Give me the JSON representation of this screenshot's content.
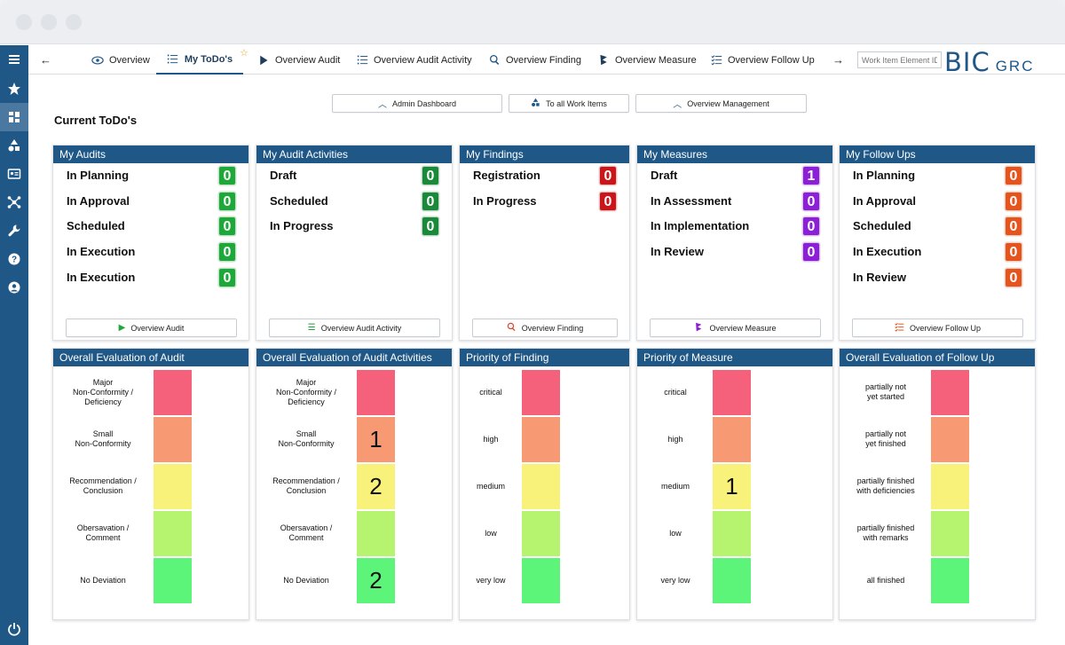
{
  "nav": {
    "tabs": [
      {
        "label": "Overview",
        "icon": "eye-icon"
      },
      {
        "label": "My ToDo's",
        "icon": "list-icon",
        "active": true
      },
      {
        "label": "Overview Audit",
        "icon": "play-icon"
      },
      {
        "label": "Overview Audit Activity",
        "icon": "list-icon"
      },
      {
        "label": "Overview Finding",
        "icon": "search-icon"
      },
      {
        "label": "Overview Measure",
        "icon": "measure-icon"
      },
      {
        "label": "Overview Follow Up",
        "icon": "checklist-icon"
      }
    ],
    "search_placeholder": "Work Item Element ID",
    "logo_main": "BIC",
    "logo_sub": "GRC"
  },
  "top_buttons": [
    "Admin Dashboard",
    "To all Work Items",
    "Overview Management"
  ],
  "page_title": "Current ToDo's",
  "colors": {
    "brand": "#1f5787",
    "green": "#1fa83a",
    "red": "#c8161a",
    "purple": "#8c20d6",
    "orange": "#e5541d",
    "eval": [
      "#f5607a",
      "#f79a74",
      "#f9f27a",
      "#b6f36e",
      "#5cf57a"
    ]
  },
  "todo_cards": [
    {
      "title": "My Audits",
      "rows": [
        {
          "label": "In Planning",
          "count": "0"
        },
        {
          "label": "In Approval",
          "count": "0"
        },
        {
          "label": "Scheduled",
          "count": "0"
        },
        {
          "label": "In Execution",
          "count": "0"
        },
        {
          "label": "In Execution",
          "count": "0"
        }
      ],
      "button": "Overview Audit"
    },
    {
      "title": "My Audit Activities",
      "rows": [
        {
          "label": "Draft",
          "count": "0"
        },
        {
          "label": "Scheduled",
          "count": "0"
        },
        {
          "label": "In Progress",
          "count": "0"
        }
      ],
      "button": "Overview Audit Activity"
    },
    {
      "title": "My Findings",
      "rows": [
        {
          "label": "Registration",
          "count": "0"
        },
        {
          "label": "In Progress",
          "count": "0"
        }
      ],
      "button": "Overview Finding"
    },
    {
      "title": "My Measures",
      "rows": [
        {
          "label": "Draft",
          "count": "1"
        },
        {
          "label": "In Assessment",
          "count": "0"
        },
        {
          "label": "In Implementation",
          "count": "0"
        },
        {
          "label": "In Review",
          "count": "0"
        }
      ],
      "button": "Overview Measure"
    },
    {
      "title": "My Follow Ups",
      "rows": [
        {
          "label": "In Planning",
          "count": "0"
        },
        {
          "label": "In Approval",
          "count": "0"
        },
        {
          "label": "Scheduled",
          "count": "0"
        },
        {
          "label": "In Execution",
          "count": "0"
        },
        {
          "label": "In Review",
          "count": "0"
        }
      ],
      "button": "Overview Follow Up"
    }
  ],
  "eval_cards": [
    {
      "title": "Overall Evaluation of Audit",
      "levels": [
        {
          "label": "Major\nNon-Conformity /\nDeficiency",
          "value": ""
        },
        {
          "label": "Small\nNon-Conformity",
          "value": ""
        },
        {
          "label": "Recommendation /\nConclusion",
          "value": ""
        },
        {
          "label": "Obersavation /\nComment",
          "value": ""
        },
        {
          "label": "No Deviation",
          "value": ""
        }
      ]
    },
    {
      "title": "Overall Evaluation of Audit Activities",
      "levels": [
        {
          "label": "Major\nNon-Conformity /\nDeficiency",
          "value": ""
        },
        {
          "label": "Small\nNon-Conformity",
          "value": "1"
        },
        {
          "label": "Recommendation /\nConclusion",
          "value": "2"
        },
        {
          "label": "Obersavation /\nComment",
          "value": ""
        },
        {
          "label": "No Deviation",
          "value": "2"
        }
      ]
    },
    {
      "title": "Priority of Finding",
      "levels": [
        {
          "label": "critical",
          "value": ""
        },
        {
          "label": "high",
          "value": ""
        },
        {
          "label": "medium",
          "value": ""
        },
        {
          "label": "low",
          "value": ""
        },
        {
          "label": "very low",
          "value": ""
        }
      ]
    },
    {
      "title": "Priority of Measure",
      "levels": [
        {
          "label": "critical",
          "value": ""
        },
        {
          "label": "high",
          "value": ""
        },
        {
          "label": "medium",
          "value": "1"
        },
        {
          "label": "low",
          "value": ""
        },
        {
          "label": "very low",
          "value": ""
        }
      ]
    },
    {
      "title": "Overall Evaluation of Follow Up",
      "levels": [
        {
          "label": "partially not\nyet started",
          "value": ""
        },
        {
          "label": "partially not\nyet finished",
          "value": ""
        },
        {
          "label": "partially finished\nwith deficiencies",
          "value": ""
        },
        {
          "label": "partially finished\nwith remarks",
          "value": ""
        },
        {
          "label": "all finished",
          "value": ""
        }
      ]
    }
  ]
}
